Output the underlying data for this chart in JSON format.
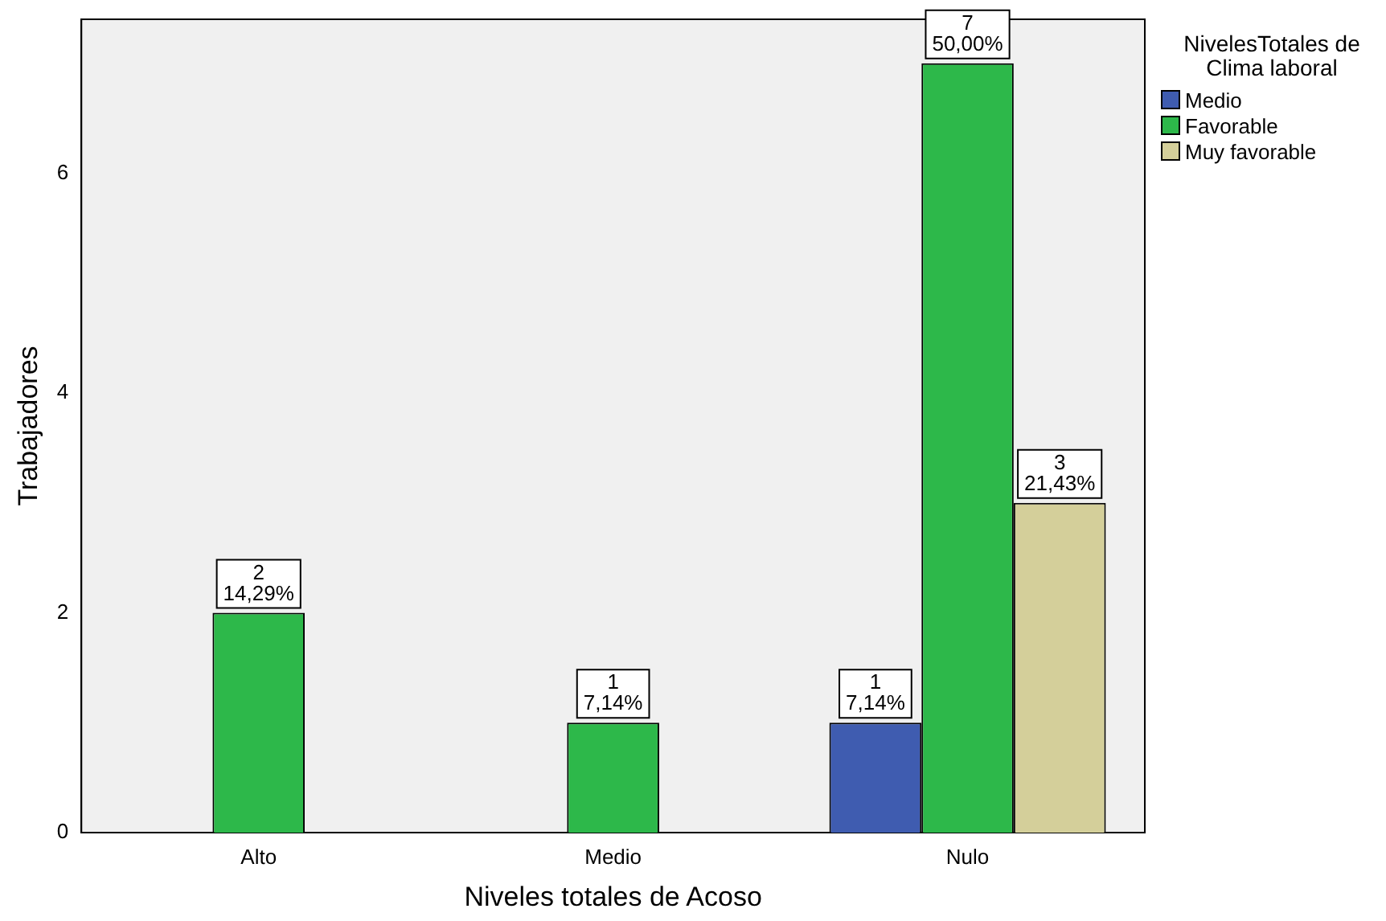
{
  "chart_data": {
    "type": "bar",
    "xlabel": "Niveles totales de Acoso",
    "ylabel": "Trabajadores",
    "legend_title": "NivelesTotales de Clima laboral",
    "categories": [
      "Alto",
      "Medio",
      "Nulo"
    ],
    "series": [
      {
        "name": "Medio",
        "color": "#3f5cb0",
        "values": [
          null,
          null,
          1
        ],
        "value_labels": [
          null,
          null,
          "1\n7,14%"
        ]
      },
      {
        "name": "Favorable",
        "color": "#2db84a",
        "values": [
          2,
          1,
          7
        ],
        "value_labels": [
          "2\n14,29%",
          "1\n7,14%",
          "7\n50,00%"
        ]
      },
      {
        "name": "Muy favorable",
        "color": "#d4cf9a",
        "values": [
          null,
          null,
          3
        ],
        "value_labels": [
          null,
          null,
          "3\n21,43%"
        ]
      }
    ],
    "ylim": [
      0,
      7.4
    ],
    "yticks": [
      0,
      2,
      4,
      6
    ],
    "grid": false,
    "legend": "right"
  }
}
